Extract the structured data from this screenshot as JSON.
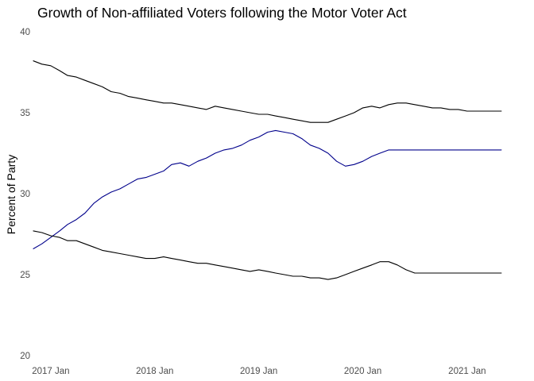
{
  "chart_data": {
    "type": "line",
    "title": "Growth of Non-affiliated Voters following the Motor Voter Act",
    "xlabel": "",
    "ylabel": "Percent of Party",
    "ylim": [
      20,
      40
    ],
    "xlim": [
      "2016-11-15",
      "2021-06-01"
    ],
    "y_ticks": [
      20,
      25,
      30,
      35,
      40
    ],
    "x_ticks": [
      {
        "label": "2017 Jan",
        "date": "2017-01-01"
      },
      {
        "label": "2018 Jan",
        "date": "2018-01-01"
      },
      {
        "label": "2019 Jan",
        "date": "2019-01-01"
      },
      {
        "label": "2020 Jan",
        "date": "2020-01-01"
      },
      {
        "label": "2021 Jan",
        "date": "2021-01-01"
      }
    ],
    "grid": false,
    "legend": "none",
    "series": [
      {
        "color": "#000000",
        "x": [
          "2016-11-01",
          "2016-12-01",
          "2017-01-01",
          "2017-02-01",
          "2017-03-01",
          "2017-04-01",
          "2017-05-01",
          "2017-06-01",
          "2017-07-01",
          "2017-08-01",
          "2017-09-01",
          "2017-10-01",
          "2017-11-01",
          "2017-12-01",
          "2018-01-01",
          "2018-02-01",
          "2018-03-01",
          "2018-04-01",
          "2018-05-01",
          "2018-06-01",
          "2018-07-01",
          "2018-08-01",
          "2018-09-01",
          "2018-10-01",
          "2018-11-01",
          "2018-12-01",
          "2019-01-01",
          "2019-02-01",
          "2019-03-01",
          "2019-04-01",
          "2019-05-01",
          "2019-06-01",
          "2019-07-01",
          "2019-08-01",
          "2019-09-01",
          "2019-10-01",
          "2019-11-01",
          "2019-12-01",
          "2020-01-01",
          "2020-02-01",
          "2020-03-01",
          "2020-04-01",
          "2020-05-01",
          "2020-06-01",
          "2020-07-01",
          "2020-08-01",
          "2020-09-01",
          "2020-10-01",
          "2020-11-01",
          "2020-12-01",
          "2021-01-01",
          "2021-02-01",
          "2021-03-01",
          "2021-04-01",
          "2021-05-01"
        ],
        "values": [
          38.2,
          38.0,
          37.9,
          37.6,
          37.3,
          37.2,
          37.0,
          36.8,
          36.6,
          36.3,
          36.2,
          36.0,
          35.9,
          35.8,
          35.7,
          35.6,
          35.6,
          35.5,
          35.4,
          35.3,
          35.2,
          35.4,
          35.3,
          35.2,
          35.1,
          35.0,
          34.9,
          34.9,
          34.8,
          34.7,
          34.6,
          34.5,
          34.4,
          34.4,
          34.4,
          34.6,
          34.8,
          35.0,
          35.3,
          35.4,
          35.3,
          35.5,
          35.6,
          35.6,
          35.5,
          35.4,
          35.3,
          35.3,
          35.2,
          35.2,
          35.1,
          35.1,
          35.1,
          35.1,
          35.1
        ]
      },
      {
        "color": "#00008b",
        "x": [
          "2016-11-01",
          "2016-12-01",
          "2017-01-01",
          "2017-02-01",
          "2017-03-01",
          "2017-04-01",
          "2017-05-01",
          "2017-06-01",
          "2017-07-01",
          "2017-08-01",
          "2017-09-01",
          "2017-10-01",
          "2017-11-01",
          "2017-12-01",
          "2018-01-01",
          "2018-02-01",
          "2018-03-01",
          "2018-04-01",
          "2018-05-01",
          "2018-06-01",
          "2018-07-01",
          "2018-08-01",
          "2018-09-01",
          "2018-10-01",
          "2018-11-01",
          "2018-12-01",
          "2019-01-01",
          "2019-02-01",
          "2019-03-01",
          "2019-04-01",
          "2019-05-01",
          "2019-06-01",
          "2019-07-01",
          "2019-08-01",
          "2019-09-01",
          "2019-10-01",
          "2019-11-01",
          "2019-12-01",
          "2020-01-01",
          "2020-02-01",
          "2020-03-01",
          "2020-04-01",
          "2020-05-01",
          "2020-06-01",
          "2020-07-01",
          "2020-08-01",
          "2020-09-01",
          "2020-10-01",
          "2020-11-01",
          "2020-12-01",
          "2021-01-01",
          "2021-02-01",
          "2021-03-01",
          "2021-04-01",
          "2021-05-01"
        ],
        "values": [
          26.6,
          26.9,
          27.3,
          27.7,
          28.1,
          28.4,
          28.8,
          29.4,
          29.8,
          30.1,
          30.3,
          30.6,
          30.9,
          31.0,
          31.2,
          31.4,
          31.8,
          31.9,
          31.7,
          32.0,
          32.2,
          32.5,
          32.7,
          32.8,
          33.0,
          33.3,
          33.5,
          33.8,
          33.9,
          33.8,
          33.7,
          33.4,
          33.0,
          32.8,
          32.5,
          32.0,
          31.7,
          31.8,
          32.0,
          32.3,
          32.5,
          32.7,
          32.7,
          32.7,
          32.7,
          32.7,
          32.7,
          32.7,
          32.7,
          32.7,
          32.7,
          32.7,
          32.7,
          32.7,
          32.7
        ]
      },
      {
        "color": "#000000",
        "x": [
          "2016-11-01",
          "2016-12-01",
          "2017-01-01",
          "2017-02-01",
          "2017-03-01",
          "2017-04-01",
          "2017-05-01",
          "2017-06-01",
          "2017-07-01",
          "2017-08-01",
          "2017-09-01",
          "2017-10-01",
          "2017-11-01",
          "2017-12-01",
          "2018-01-01",
          "2018-02-01",
          "2018-03-01",
          "2018-04-01",
          "2018-05-01",
          "2018-06-01",
          "2018-07-01",
          "2018-08-01",
          "2018-09-01",
          "2018-10-01",
          "2018-11-01",
          "2018-12-01",
          "2019-01-01",
          "2019-02-01",
          "2019-03-01",
          "2019-04-01",
          "2019-05-01",
          "2019-06-01",
          "2019-07-01",
          "2019-08-01",
          "2019-09-01",
          "2019-10-01",
          "2019-11-01",
          "2019-12-01",
          "2020-01-01",
          "2020-02-01",
          "2020-03-01",
          "2020-04-01",
          "2020-05-01",
          "2020-06-01",
          "2020-07-01",
          "2020-08-01",
          "2020-09-01",
          "2020-10-01",
          "2020-11-01",
          "2020-12-01",
          "2021-01-01",
          "2021-02-01",
          "2021-03-01",
          "2021-04-01",
          "2021-05-01"
        ],
        "values": [
          27.7,
          27.6,
          27.4,
          27.3,
          27.1,
          27.1,
          26.9,
          26.7,
          26.5,
          26.4,
          26.3,
          26.2,
          26.1,
          26.0,
          26.0,
          26.1,
          26.0,
          25.9,
          25.8,
          25.7,
          25.7,
          25.6,
          25.5,
          25.4,
          25.3,
          25.2,
          25.3,
          25.2,
          25.1,
          25.0,
          24.9,
          24.9,
          24.8,
          24.8,
          24.7,
          24.8,
          25.0,
          25.2,
          25.4,
          25.6,
          25.8,
          25.8,
          25.6,
          25.3,
          25.1,
          25.1,
          25.1,
          25.1,
          25.1,
          25.1,
          25.1,
          25.1,
          25.1,
          25.1,
          25.1
        ]
      }
    ]
  }
}
